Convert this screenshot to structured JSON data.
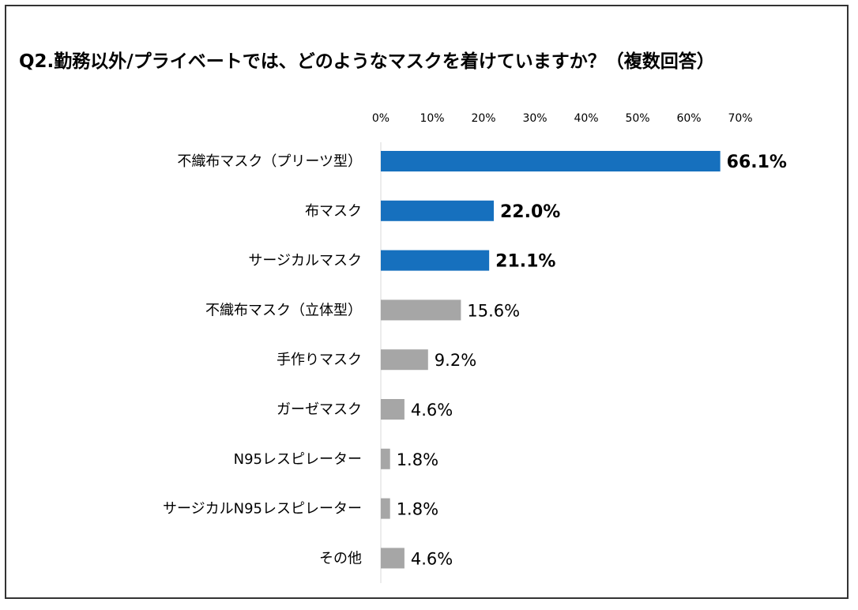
{
  "chart_data": {
    "type": "bar",
    "orientation": "horizontal",
    "title": "Q2.勤務以外/プライベートでは、どのようなマスクを着けていますか？（複数回答）",
    "xlabel": "",
    "ylabel": "",
    "xlim": [
      0,
      70
    ],
    "x_ticks": [
      0,
      10,
      20,
      30,
      40,
      50,
      60,
      70
    ],
    "x_tick_labels": [
      "0%",
      "10%",
      "20%",
      "30%",
      "40%",
      "50%",
      "60%",
      "70%"
    ],
    "categories": [
      "不織布マスク（プリーツ型）",
      "布マスク",
      "サージカルマスク",
      "不織布マスク（立体型）",
      "手作りマスク",
      "ガーゼマスク",
      "N95レスピレーター",
      "サージカルN95レスピレーター",
      "その他"
    ],
    "values": [
      66.1,
      22.0,
      21.1,
      15.6,
      9.2,
      4.6,
      1.8,
      1.8,
      4.6
    ],
    "value_labels": [
      "66.1%",
      "22.0%",
      "21.1%",
      "15.6%",
      "9.2%",
      "4.6%",
      "1.8%",
      "1.8%",
      "4.6%"
    ],
    "highlight": [
      true,
      true,
      true,
      false,
      false,
      false,
      false,
      false,
      false
    ],
    "colors": {
      "highlight": "#1670BE",
      "normal": "#A6A6A6",
      "axis": "#D9D9D9"
    }
  }
}
